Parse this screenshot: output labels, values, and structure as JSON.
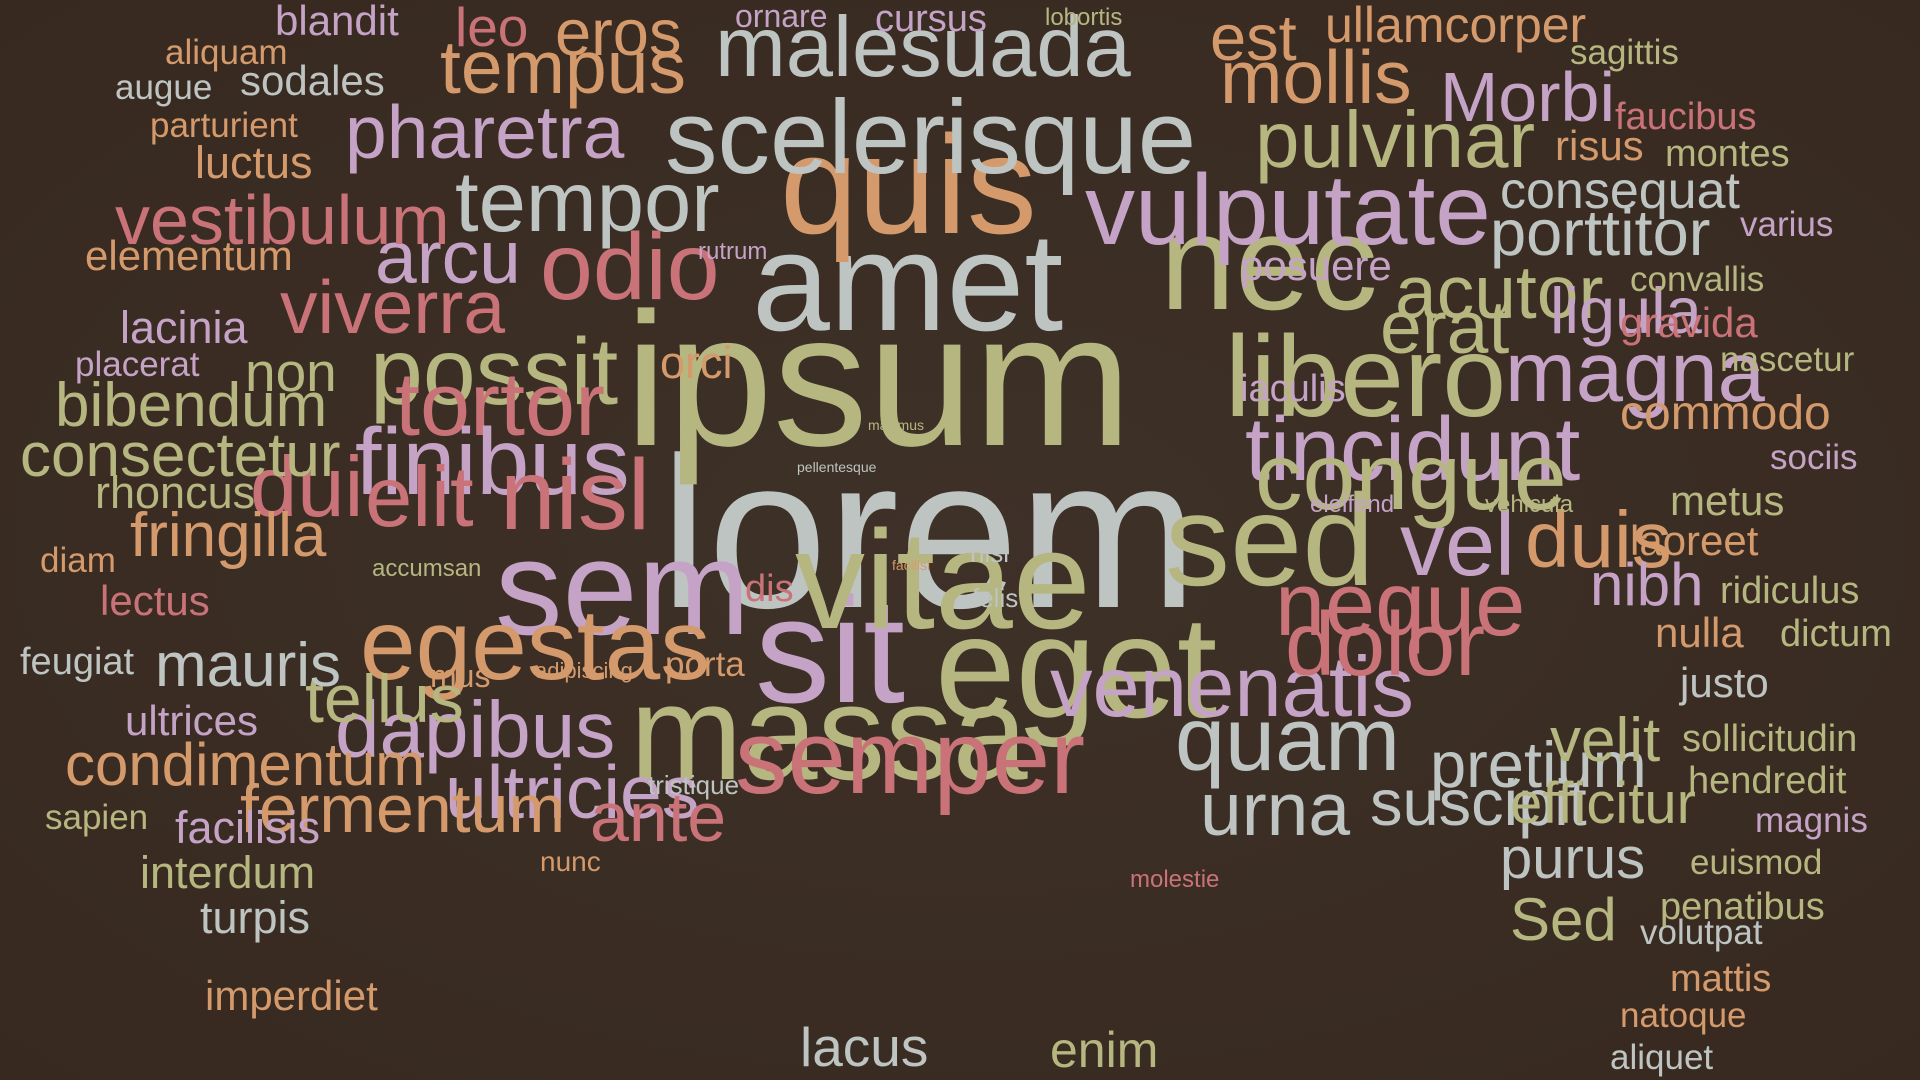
{
  "palette": {
    "background": "#3a2d24",
    "sage": "#b6b680",
    "silver": "#bdc4c2",
    "lilac": "#c5a3c6",
    "rose": "#c97379",
    "tan": "#d49a6c"
  },
  "words": [
    {
      "text": "lorem",
      "color": "silver"
    },
    {
      "text": "ipsum",
      "color": "sage"
    },
    {
      "text": "amet",
      "color": "silver"
    },
    {
      "text": "sit",
      "color": "lilac"
    },
    {
      "text": "eget",
      "color": "sage"
    },
    {
      "text": "vitae",
      "color": "sage"
    },
    {
      "text": "sem",
      "color": "lilac"
    },
    {
      "text": "massa",
      "color": "sage"
    },
    {
      "text": "quis",
      "color": "tan"
    },
    {
      "text": "nec",
      "color": "sage"
    },
    {
      "text": "scelerisque",
      "color": "silver"
    },
    {
      "text": "sed",
      "color": "sage"
    },
    {
      "text": "semper",
      "color": "rose"
    },
    {
      "text": "malesuada",
      "color": "silver"
    },
    {
      "text": "vulputate",
      "color": "lilac"
    },
    {
      "text": "tempor",
      "color": "silver"
    },
    {
      "text": "egestas",
      "color": "tan"
    },
    {
      "text": "venenatis",
      "color": "lilac"
    },
    {
      "text": "libero",
      "color": "sage"
    },
    {
      "text": "tincidunt",
      "color": "lilac"
    },
    {
      "text": "magna",
      "color": "lilac"
    },
    {
      "text": "possit",
      "color": "sage"
    },
    {
      "text": "odio",
      "color": "rose"
    },
    {
      "text": "tortor",
      "color": "rose"
    },
    {
      "text": "finibus",
      "color": "lilac"
    },
    {
      "text": "nisl",
      "color": "rose"
    },
    {
      "text": "dolor",
      "color": "rose"
    },
    {
      "text": "neque",
      "color": "rose"
    },
    {
      "text": "congue",
      "color": "sage"
    },
    {
      "text": "quam",
      "color": "silver"
    },
    {
      "text": "pulvinar",
      "color": "sage"
    },
    {
      "text": "pharetra",
      "color": "lilac"
    },
    {
      "text": "tempus",
      "color": "tan"
    },
    {
      "text": "mollis",
      "color": "tan"
    },
    {
      "text": "est",
      "color": "tan"
    },
    {
      "text": "ullamcorper",
      "color": "tan"
    },
    {
      "text": "acutor",
      "color": "sage"
    },
    {
      "text": "erat",
      "color": "sage"
    },
    {
      "text": "ligula",
      "color": "lilac"
    },
    {
      "text": "vel",
      "color": "lilac"
    },
    {
      "text": "duis",
      "color": "tan"
    },
    {
      "text": "elit",
      "color": "rose"
    },
    {
      "text": "dui",
      "color": "rose"
    },
    {
      "text": "arcu",
      "color": "lilac"
    },
    {
      "text": "viverra",
      "color": "rose"
    },
    {
      "text": "dapibus",
      "color": "lilac"
    },
    {
      "text": "ultricies",
      "color": "lilac"
    },
    {
      "text": "ante",
      "color": "rose"
    },
    {
      "text": "fermentum",
      "color": "tan"
    },
    {
      "text": "pretium",
      "color": "silver"
    },
    {
      "text": "suscipit",
      "color": "silver"
    },
    {
      "text": "urna",
      "color": "silver"
    },
    {
      "text": "Morbi",
      "color": "lilac"
    },
    {
      "text": "porttitor",
      "color": "silver"
    },
    {
      "text": "eros",
      "color": "tan"
    },
    {
      "text": "vestibulum",
      "color": "rose"
    },
    {
      "text": "consectetur",
      "color": "sage"
    },
    {
      "text": "bibendum",
      "color": "sage"
    },
    {
      "text": "tellus",
      "color": "sage"
    },
    {
      "text": "mauris",
      "color": "silver"
    },
    {
      "text": "condimentum",
      "color": "tan"
    },
    {
      "text": "fringilla",
      "color": "tan"
    },
    {
      "text": "nibh",
      "color": "lilac"
    },
    {
      "text": "velit",
      "color": "sage"
    },
    {
      "text": "efficitur",
      "color": "sage"
    },
    {
      "text": "purus",
      "color": "silver"
    },
    {
      "text": "Sed",
      "color": "sage"
    },
    {
      "text": "non",
      "color": "sage"
    },
    {
      "text": "consequat",
      "color": "silver"
    },
    {
      "text": "commodo",
      "color": "tan"
    },
    {
      "text": "lacus",
      "color": "silver"
    },
    {
      "text": "enim",
      "color": "sage"
    },
    {
      "text": "leo",
      "color": "rose"
    },
    {
      "text": "blandit",
      "color": "lilac"
    },
    {
      "text": "sodales",
      "color": "silver"
    },
    {
      "text": "elementum",
      "color": "tan"
    },
    {
      "text": "lacinia",
      "color": "lilac"
    },
    {
      "text": "rhoncus",
      "color": "sage"
    },
    {
      "text": "facilisis",
      "color": "lilac"
    },
    {
      "text": "interdum",
      "color": "sage"
    },
    {
      "text": "turpis",
      "color": "silver"
    },
    {
      "text": "imperdiet",
      "color": "tan"
    },
    {
      "text": "ultrices",
      "color": "lilac"
    },
    {
      "text": "lectus",
      "color": "rose"
    },
    {
      "text": "luctus",
      "color": "tan"
    },
    {
      "text": "posuere",
      "color": "lilac"
    },
    {
      "text": "laoreet",
      "color": "tan"
    },
    {
      "text": "nulla",
      "color": "tan"
    },
    {
      "text": "justo",
      "color": "silver"
    },
    {
      "text": "metus",
      "color": "sage"
    },
    {
      "text": "gravida",
      "color": "rose"
    },
    {
      "text": "risus",
      "color": "tan"
    },
    {
      "text": "montes",
      "color": "sage"
    },
    {
      "text": "orci",
      "color": "tan"
    },
    {
      "text": "mattis",
      "color": "tan"
    },
    {
      "text": "natoque",
      "color": "tan"
    },
    {
      "text": "aliquet",
      "color": "silver"
    },
    {
      "text": "volutpat",
      "color": "silver"
    },
    {
      "text": "cursus",
      "color": "lilac"
    },
    {
      "text": "feugiat",
      "color": "silver"
    },
    {
      "text": "ridiculus",
      "color": "sage"
    },
    {
      "text": "dictum",
      "color": "sage"
    },
    {
      "text": "sollicitudin",
      "color": "sage"
    },
    {
      "text": "hendredit",
      "color": "sage"
    },
    {
      "text": "magnis",
      "color": "lilac"
    },
    {
      "text": "euismod",
      "color": "sage"
    },
    {
      "text": "penatibus",
      "color": "sage"
    },
    {
      "text": "faucibus",
      "color": "rose"
    },
    {
      "text": "varius",
      "color": "lilac"
    },
    {
      "text": "convallis",
      "color": "sage"
    },
    {
      "text": "nascetur",
      "color": "sage"
    },
    {
      "text": "sociis",
      "color": "lilac"
    },
    {
      "text": "sagittis",
      "color": "sage"
    },
    {
      "text": "aliquam",
      "color": "tan"
    },
    {
      "text": "augue",
      "color": "silver"
    },
    {
      "text": "parturient",
      "color": "tan"
    },
    {
      "text": "placerat",
      "color": "lilac"
    },
    {
      "text": "diam",
      "color": "tan"
    },
    {
      "text": "sapien",
      "color": "sage"
    },
    {
      "text": "porta",
      "color": "tan"
    },
    {
      "text": "mus",
      "color": "tan"
    },
    {
      "text": "dis",
      "color": "rose"
    },
    {
      "text": "iaculis",
      "color": "lilac"
    },
    {
      "text": "ornare",
      "color": "lilac"
    },
    {
      "text": "tristique",
      "color": "silver"
    },
    {
      "text": "nunc",
      "color": "tan"
    },
    {
      "text": "nisi",
      "color": "silver"
    },
    {
      "text": "felis",
      "color": "silver"
    },
    {
      "text": "rutrum",
      "color": "lilac"
    },
    {
      "text": "accumsan",
      "color": "sage"
    },
    {
      "text": "adipiscing",
      "color": "tan"
    },
    {
      "text": "eleifend",
      "color": "lilac"
    },
    {
      "text": "vehicula",
      "color": "sage"
    },
    {
      "text": "molestie",
      "color": "rose"
    },
    {
      "text": "lobortis",
      "color": "sage"
    },
    {
      "text": "maximus",
      "color": "sage"
    },
    {
      "text": "pellentesque",
      "color": "silver"
    },
    {
      "text": "facilisi",
      "color": "tan"
    }
  ]
}
